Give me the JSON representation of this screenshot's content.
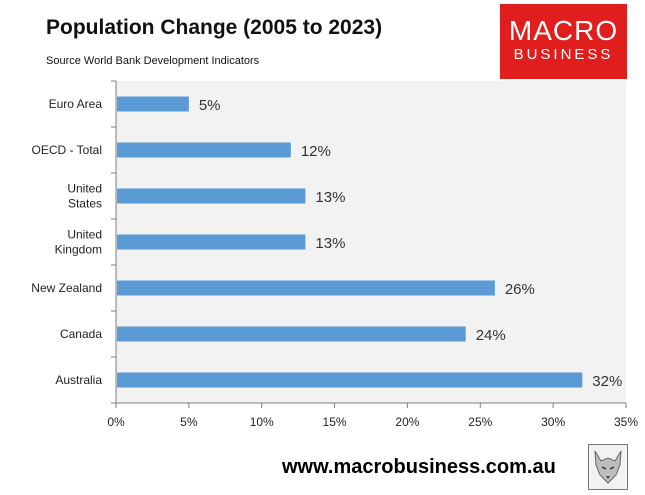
{
  "header": {
    "title": "Population Change (2005 to 2023)",
    "subtitle": "Source World Bank Development Indicators"
  },
  "logo": {
    "line1": "MACRO",
    "line2": "BUSINESS",
    "color": "#e01e1e"
  },
  "footer": {
    "url": "www.macrobusiness.com.au",
    "emblem_icon": "wolf-emblem-icon"
  },
  "chart_data": {
    "type": "bar",
    "orientation": "horizontal",
    "categories": [
      [
        "Euro Area"
      ],
      [
        "OECD - Total"
      ],
      [
        "United",
        "States"
      ],
      [
        "United",
        "Kingdom"
      ],
      [
        "New Zealand"
      ],
      [
        "Canada"
      ],
      [
        "Australia"
      ]
    ],
    "values": [
      5,
      12,
      13,
      13,
      26,
      24,
      32
    ],
    "data_labels": [
      "5%",
      "12%",
      "13%",
      "13%",
      "26%",
      "24%",
      "32%"
    ],
    "x_ticks": [
      0,
      5,
      10,
      15,
      20,
      25,
      30,
      35
    ],
    "x_tick_labels": [
      "0%",
      "5%",
      "10%",
      "15%",
      "20%",
      "25%",
      "30%",
      "35%"
    ],
    "xlim": [
      0,
      35
    ],
    "bar_color": "#5b9bd5",
    "plot_background": "#f2f2f2",
    "grid": false,
    "legend": "none"
  }
}
